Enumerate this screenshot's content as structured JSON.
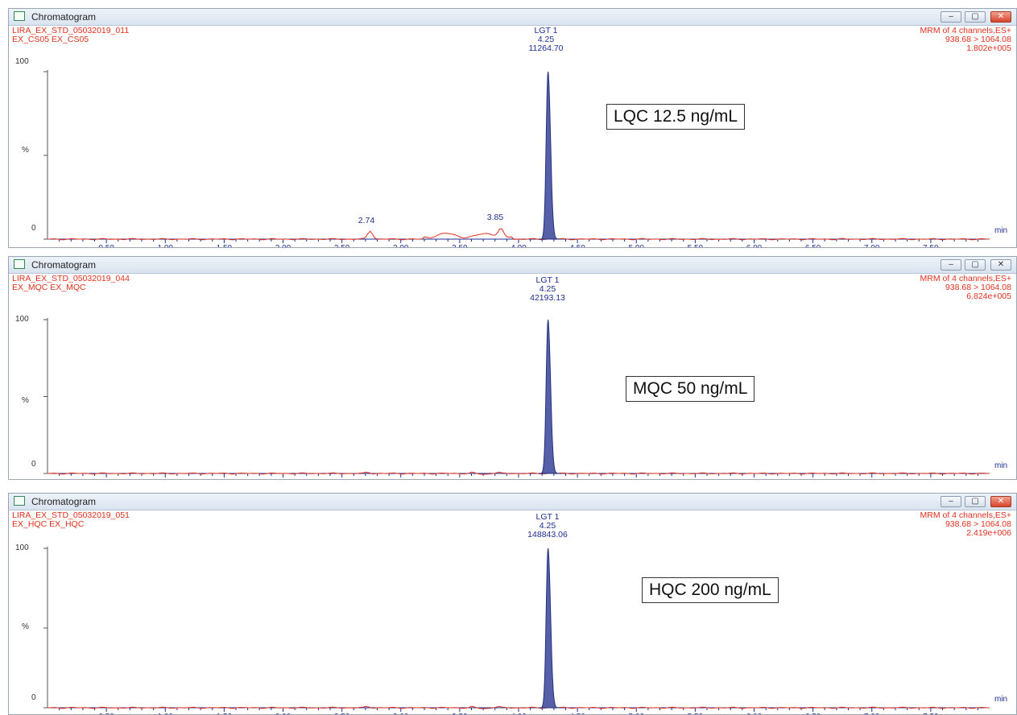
{
  "panels": [
    {
      "window_title": "Chromatogram",
      "sample_line1": "LIRA_EX_STD_05032019_011",
      "sample_line2": "EX_CS05 EX_CS05",
      "mrm_line1": "MRM of 4 channels,ES+",
      "mrm_line2": "938.68 > 1064.08",
      "mrm_line3": "1.802e+005",
      "peak_name": "LGT 1",
      "peak_rt": "4.25",
      "peak_area": "11264.70",
      "concentration_label": "LQC 12.5 ng/mL",
      "minor_peaks": [
        {
          "rt": 2.74,
          "label": "2.74"
        },
        {
          "rt": 3.85,
          "label": "3.85"
        }
      ],
      "close_style": "red"
    },
    {
      "window_title": "Chromatogram",
      "sample_line1": "LIRA_EX_STD_05032019_044",
      "sample_line2": "EX_MQC EX_MQC",
      "mrm_line1": "MRM of 4 channels,ES+",
      "mrm_line2": "938.68 > 1064.08",
      "mrm_line3": "6.824e+005",
      "peak_name": "LGT 1",
      "peak_rt": "4.25",
      "peak_area": "42193.13",
      "concentration_label": "MQC 50 ng/mL",
      "minor_peaks": [],
      "close_style": "plain"
    },
    {
      "window_title": "Chromatogram",
      "sample_line1": "LIRA_EX_STD_05032019_051",
      "sample_line2": "EX_HQC EX_HQC",
      "mrm_line1": "MRM of 4 channels,ES+",
      "mrm_line2": "938.68 > 1064.08",
      "mrm_line3": "2.419e+006",
      "peak_name": "LGT 1",
      "peak_rt": "4.25",
      "peak_area": "148843.06",
      "concentration_label": "HQC 200 ng/mL",
      "minor_peaks": [],
      "close_style": "red"
    }
  ],
  "axis": {
    "x_ticks": [
      "0.50",
      "1.00",
      "1.50",
      "2.00",
      "2.50",
      "3.00",
      "3.50",
      "4.00",
      "4.50",
      "5.00",
      "5.50",
      "6.00",
      "6.50",
      "7.00",
      "7.50"
    ],
    "x_unit": "min",
    "y_ticks": [
      "100",
      "%",
      "0"
    ]
  },
  "window_buttons": {
    "minimize": "–",
    "maximize": "▢",
    "close": "✕"
  },
  "colors": {
    "trace": "#e0301e",
    "peak_fill": "#5560a8",
    "axis": "#1d2f8f",
    "label_red": "#e0301e"
  },
  "chart_data": [
    {
      "type": "line",
      "x_unit": "min",
      "xlim": [
        0,
        8
      ],
      "ylim": [
        0,
        100
      ],
      "y_unit": "%",
      "series": [
        {
          "values_note": "",
          "peaks": [
            {
              "x": 4.25,
              "y": 100
            },
            {
              "x": 2.74,
              "y": 2
            },
            {
              "x": 3.85,
              "y": 4
            }
          ]
        }
      ]
    },
    {
      "type": "line",
      "x_unit": "min",
      "xlim": [
        0,
        8
      ],
      "ylim": [
        0,
        100
      ],
      "y_unit": "%",
      "series": [
        {
          "peaks": [
            {
              "x": 4.25,
              "y": 100
            }
          ]
        }
      ]
    },
    {
      "type": "line",
      "x_unit": "min",
      "xlim": [
        0,
        8
      ],
      "ylim": [
        0,
        100
      ],
      "y_unit": "%",
      "series": [
        {
          "peaks": [
            {
              "x": 4.25,
              "y": 100
            }
          ]
        }
      ]
    }
  ]
}
